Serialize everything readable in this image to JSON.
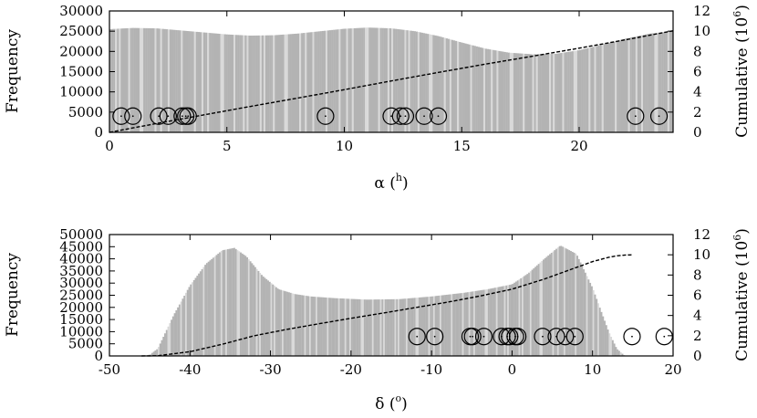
{
  "chart_data": [
    {
      "type": "bar",
      "panel": "top",
      "ylabel": "Frequency",
      "ylabel2": "Cumulative (10",
      "ylabel2_sup": "6",
      "ylabel2_suffix": ")",
      "xlabel": "α (",
      "xlabel_sup": "h",
      "xlabel_suffix": ")",
      "xlim": [
        0,
        24
      ],
      "ylim": [
        0,
        30000
      ],
      "y2lim": [
        0,
        12
      ],
      "xticks": [
        0,
        5,
        10,
        15,
        20
      ],
      "yticks": [
        0,
        5000,
        10000,
        15000,
        20000,
        25000,
        30000
      ],
      "y2ticks": [
        0,
        2,
        4,
        6,
        8,
        10,
        12
      ],
      "series": [
        {
          "kind": "histogram",
          "x": [
            0,
            1,
            2,
            3,
            4,
            5,
            6,
            7,
            8,
            9,
            10,
            11,
            12,
            13,
            14,
            15,
            16,
            17,
            18,
            19,
            20,
            21,
            22,
            23,
            24
          ],
          "values": [
            25500,
            25800,
            25700,
            25200,
            24700,
            24200,
            23900,
            24000,
            24400,
            25000,
            25600,
            25900,
            25700,
            25000,
            23800,
            22200,
            20700,
            19700,
            19300,
            19400,
            20300,
            21700,
            23200,
            24400,
            25000
          ]
        },
        {
          "kind": "cumulative",
          "x": [
            0,
            2,
            4,
            6,
            8,
            10,
            12,
            14,
            16,
            18,
            20,
            22,
            24
          ],
          "values": [
            0,
            0.87,
            1.72,
            2.56,
            3.38,
            4.22,
            5.08,
            5.92,
            6.74,
            7.52,
            8.32,
            9.16,
            10.04
          ]
        },
        {
          "kind": "markers",
          "y": 4000,
          "x": [
            0.5,
            1.0,
            2.1,
            2.5,
            3.1,
            3.25,
            3.35,
            9.2,
            12.0,
            12.4,
            12.6,
            13.4,
            14.0,
            22.4,
            23.4
          ]
        }
      ]
    },
    {
      "type": "bar",
      "panel": "bottom",
      "ylabel": "Frequency",
      "ylabel2": "Cumulative (10",
      "ylabel2_sup": "6",
      "ylabel2_suffix": ")",
      "xlabel": "δ (",
      "xlabel_sup": "o",
      "xlabel_suffix": ")",
      "xlim": [
        -50,
        20
      ],
      "ylim": [
        0,
        50000
      ],
      "y2lim": [
        0,
        12
      ],
      "xticks": [
        -50,
        -40,
        -30,
        -20,
        -10,
        0,
        10,
        20
      ],
      "yticks": [
        0,
        5000,
        10000,
        15000,
        20000,
        25000,
        30000,
        35000,
        40000,
        45000,
        50000
      ],
      "y2ticks": [
        0,
        2,
        4,
        6,
        8,
        10,
        12
      ],
      "series": [
        {
          "kind": "histogram",
          "x": [
            -46,
            -45,
            -44,
            -42,
            -40,
            -38,
            -36,
            -34.5,
            -33,
            -31,
            -29,
            -27,
            -25,
            -22,
            -18,
            -14,
            -10,
            -6,
            -3,
            0,
            2,
            4,
            6,
            8,
            10,
            12,
            13,
            14
          ],
          "values": [
            0,
            500,
            3000,
            17000,
            29000,
            38000,
            43500,
            44500,
            41000,
            33000,
            27500,
            25500,
            24500,
            23800,
            23200,
            23400,
            24500,
            26000,
            27500,
            29500,
            34000,
            40000,
            45500,
            42000,
            28000,
            10000,
            3000,
            0
          ]
        },
        {
          "kind": "cumulative",
          "x": [
            -46,
            -44,
            -40,
            -36,
            -32,
            -28,
            -24,
            -20,
            -16,
            -12,
            -8,
            -4,
            0,
            4,
            8,
            10,
            12,
            13,
            14,
            15
          ],
          "values": [
            0,
            0.02,
            0.42,
            1.15,
            2.0,
            2.62,
            3.18,
            3.72,
            4.24,
            4.78,
            5.32,
            5.92,
            6.6,
            7.6,
            8.75,
            9.33,
            9.75,
            9.9,
            9.97,
            10.0
          ]
        },
        {
          "kind": "markers",
          "y": 8000,
          "x": [
            -11.8,
            -9.6,
            -5.2,
            -4.9,
            -3.5,
            -1.3,
            -0.6,
            -0.3,
            0.4,
            0.7,
            3.8,
            5.5,
            6.6,
            7.8,
            14.9,
            18.9
          ]
        }
      ]
    }
  ]
}
